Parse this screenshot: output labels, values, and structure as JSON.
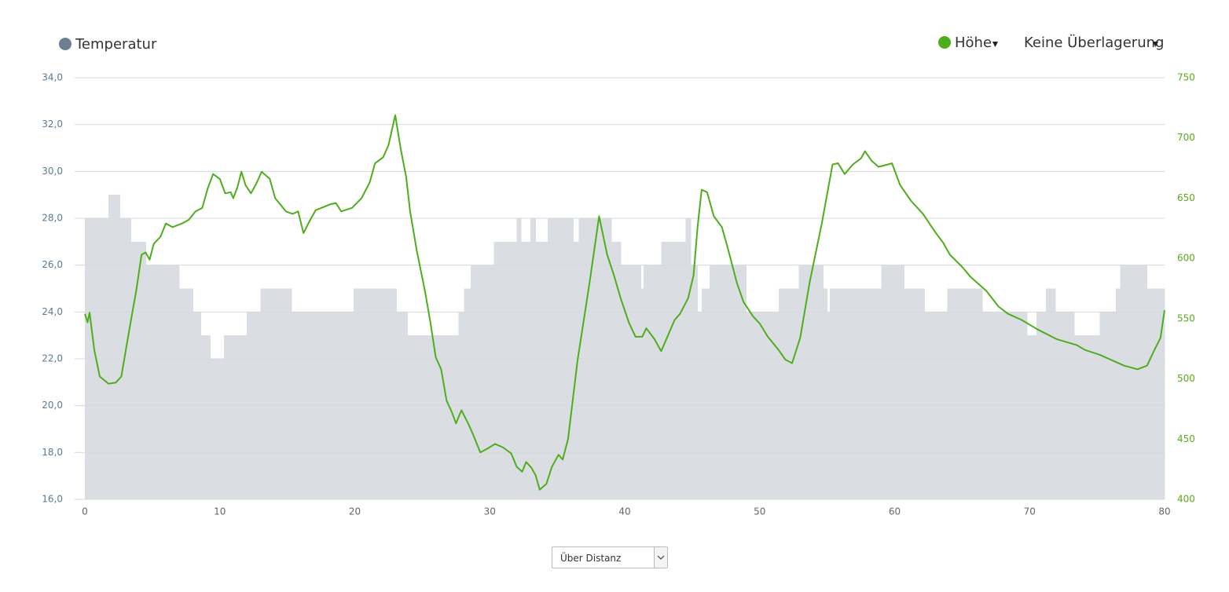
{
  "chart_data": {
    "type": "line",
    "xlim": [
      0,
      80
    ],
    "xticks": [
      0,
      10,
      20,
      30,
      40,
      50,
      60,
      70,
      80
    ],
    "ylim": [
      16,
      34
    ],
    "yticks": [
      {
        "value": 16,
        "label": "16,0"
      },
      {
        "value": 18,
        "label": "18,0"
      },
      {
        "value": 20,
        "label": "20,0"
      },
      {
        "value": 22,
        "label": "22,0"
      },
      {
        "value": 24,
        "label": "24,0"
      },
      {
        "value": 26,
        "label": "26,0"
      },
      {
        "value": 28,
        "label": "28,0"
      },
      {
        "value": 30,
        "label": "30,0"
      },
      {
        "value": 32,
        "label": "32,0"
      },
      {
        "value": 34,
        "label": "34,0"
      }
    ],
    "y2lim": [
      400,
      750
    ],
    "y2ticks": [
      400,
      450,
      500,
      550,
      600,
      650,
      700,
      750
    ],
    "grid": true,
    "series": [
      {
        "name": "Temperatur",
        "type": "area",
        "step": "after",
        "color": "#6b7f90",
        "fill": "#dadee2",
        "tick_color": "#5d7a90",
        "x": [
          0,
          1.75,
          2.6,
          3.4,
          4.5,
          7.0,
          8.0,
          8.6,
          9.3,
          10.3,
          12.0,
          13.0,
          15.3,
          19.9,
          23.1,
          23.9,
          27.7,
          28.1,
          28.6,
          30.3,
          32.0,
          32.3,
          33.0,
          33.4,
          34.3,
          36.2,
          36.6,
          39.0,
          39.7,
          41.2,
          41.4,
          42.7,
          44.5,
          44.9,
          45.4,
          45.7,
          46.3,
          49.0,
          51.4,
          52.9,
          54.7,
          55.0,
          55.2,
          59.0,
          60.7,
          62.2,
          63.9,
          66.5,
          69.8,
          70.5,
          71.2,
          71.9,
          73.3,
          75.2,
          76.4,
          76.7,
          78.7
        ],
        "values": [
          28,
          29,
          28,
          27,
          26,
          25,
          24,
          23,
          22,
          23,
          24,
          25,
          24,
          25,
          24,
          23,
          24,
          25,
          26,
          27,
          28,
          27,
          28,
          27,
          28,
          27,
          28,
          27,
          26,
          25,
          26,
          27,
          28,
          26,
          24,
          25,
          26,
          24,
          25,
          26,
          25,
          24,
          25,
          26,
          25,
          24,
          25,
          24,
          23,
          24,
          25,
          24,
          23,
          24,
          25,
          26,
          25
        ]
      },
      {
        "name": "Höhe",
        "axis": "y2",
        "color": "#4caf1a",
        "tick_color": "#5aaa1a",
        "x": [
          0,
          0.2,
          0.35,
          0.7,
          1.1,
          1.75,
          2.3,
          2.7,
          3.1,
          3.5,
          3.8,
          4.2,
          4.5,
          4.8,
          5.1,
          5.6,
          6.0,
          6.5,
          7.2,
          7.7,
          8.2,
          8.7,
          9.1,
          9.5,
          10.0,
          10.4,
          10.8,
          11.0,
          11.3,
          11.6,
          11.9,
          12.3,
          12.7,
          13.1,
          13.7,
          14.1,
          14.9,
          15.4,
          15.8,
          16.2,
          16.7,
          17.1,
          18.2,
          18.6,
          19.0,
          19.8,
          20.5,
          21.1,
          21.5,
          22.1,
          22.5,
          23.0,
          23.4,
          23.8,
          24.1,
          24.6,
          25.2,
          25.6,
          26.0,
          26.4,
          26.8,
          27.2,
          27.5,
          27.9,
          28.4,
          28.8,
          29.3,
          29.8,
          30.4,
          31.0,
          31.6,
          32.0,
          32.4,
          32.7,
          33.1,
          33.4,
          33.7,
          34.2,
          34.6,
          35.1,
          35.4,
          35.8,
          36.5,
          37.4,
          38.1,
          38.7,
          39.2,
          39.7,
          40.3,
          40.8,
          41.3,
          41.6,
          42.2,
          42.7,
          43.2,
          43.7,
          44.1,
          44.7,
          45.1,
          45.4,
          45.7,
          46.1,
          46.6,
          47.2,
          47.7,
          48.3,
          48.8,
          49.5,
          50.0,
          50.6,
          51.4,
          51.9,
          52.4,
          53.0,
          53.7,
          54.6,
          55.4,
          55.8,
          56.3,
          56.9,
          57.5,
          57.8,
          58.3,
          58.8,
          59.5,
          59.8,
          60.4,
          61.2,
          62.1,
          63.0,
          63.6,
          64.1,
          65.0,
          65.6,
          66.8,
          67.7,
          68.4,
          69.4,
          70.6,
          72.0,
          73.5,
          74.1,
          75.2,
          77.0,
          78.0,
          78.7,
          79.2,
          79.7,
          80.0
        ],
        "values": [
          554,
          547,
          555,
          524,
          502,
          496,
          497,
          502,
          528,
          554,
          573,
          603,
          605,
          599,
          612,
          618,
          629,
          626,
          629,
          632,
          639,
          642,
          658,
          670,
          666,
          654,
          655,
          650,
          659,
          672,
          661,
          654,
          662,
          672,
          666,
          650,
          639,
          637,
          639,
          621,
          632,
          640,
          645,
          646,
          639,
          642,
          650,
          663,
          679,
          684,
          694,
          719,
          691,
          668,
          639,
          606,
          573,
          547,
          518,
          508,
          482,
          472,
          463,
          474,
          463,
          453,
          439,
          442,
          446,
          443,
          438,
          427,
          423,
          431,
          426,
          420,
          408,
          413,
          427,
          437,
          433,
          450,
          515,
          580,
          635,
          603,
          586,
          567,
          547,
          535,
          535,
          542,
          533,
          523,
          536,
          549,
          554,
          567,
          586,
          626,
          657,
          655,
          635,
          626,
          606,
          580,
          564,
          552,
          546,
          535,
          524,
          516,
          513,
          534,
          580,
          629,
          678,
          679,
          670,
          678,
          683,
          689,
          681,
          676,
          678,
          679,
          661,
          648,
          637,
          622,
          613,
          603,
          593,
          585,
          573,
          560,
          554,
          549,
          541,
          533,
          528,
          524,
          520,
          511,
          508,
          511,
          523,
          534,
          557
        ]
      }
    ]
  },
  "controls": {
    "overlay": "Keine Überlagerung",
    "x_axis_mode": "Über Distanz"
  }
}
